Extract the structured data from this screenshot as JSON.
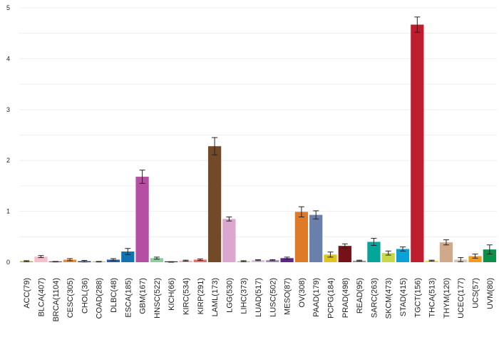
{
  "chart_data": {
    "type": "bar",
    "title": "",
    "xlabel": "",
    "ylabel": "",
    "ylim": [
      0,
      5
    ],
    "yticks": [
      0,
      1,
      2,
      3,
      4,
      5
    ],
    "grid": true,
    "categories": [
      "ACC(79)",
      "BLCA(407)",
      "BRCA(1104)",
      "CESC(305)",
      "CHOL(36)",
      "COAD(288)",
      "DLBC(48)",
      "ESCA(185)",
      "GBM(167)",
      "HNSC(522)",
      "KICH(66)",
      "KIRC(534)",
      "KIRP(291)",
      "LAML(173)",
      "LGG(530)",
      "LIHC(373)",
      "LUAD(517)",
      "LUSC(502)",
      "MESO(87)",
      "OV(308)",
      "PAAD(179)",
      "PCPG(184)",
      "PRAD(498)",
      "READ(95)",
      "SARC(263)",
      "SKCM(473)",
      "STAD(415)",
      "TGCT(156)",
      "THCA(513)",
      "THYM(120)",
      "UCEC(177)",
      "UCS(57)",
      "UVM(80)"
    ],
    "values": [
      0.02,
      0.11,
      0.01,
      0.05,
      0.02,
      0.01,
      0.05,
      0.21,
      1.68,
      0.08,
      0.005,
      0.03,
      0.05,
      2.28,
      0.85,
      0.02,
      0.04,
      0.04,
      0.08,
      0.99,
      0.93,
      0.15,
      0.32,
      0.03,
      0.4,
      0.18,
      0.26,
      4.67,
      0.03,
      0.39,
      0.05,
      0.12,
      0.25
    ],
    "errors": [
      0.01,
      0.02,
      0.005,
      0.02,
      0.015,
      0.005,
      0.02,
      0.06,
      0.13,
      0.02,
      0.005,
      0.01,
      0.015,
      0.17,
      0.04,
      0.01,
      0.01,
      0.01,
      0.02,
      0.1,
      0.08,
      0.05,
      0.04,
      0.01,
      0.07,
      0.04,
      0.04,
      0.15,
      0.01,
      0.05,
      0.04,
      0.04,
      0.09
    ],
    "colors": [
      "#C5A430",
      "#F5BFCC",
      "#D2226F",
      "#EE8B2E",
      "#1D3E78",
      "#CCCC33",
      "#2D5EA6",
      "#1173B0",
      "#B54FA3",
      "#8FCC9E",
      "#3A3A3A",
      "#F0B1B7",
      "#E6706F",
      "#724A27",
      "#DBA7CF",
      "#B8BA8E",
      "#D8C0DE",
      "#A28BC0",
      "#5E2689",
      "#DF7B28",
      "#6B7FAB",
      "#E0C51E",
      "#761117",
      "#9B9B9B",
      "#04A69A",
      "#C7D946",
      "#0BA0D6",
      "#BF1E2E",
      "#F1DA47",
      "#CFA98A",
      "#D4C6B7",
      "#F39A1F",
      "#0C8F48"
    ]
  }
}
